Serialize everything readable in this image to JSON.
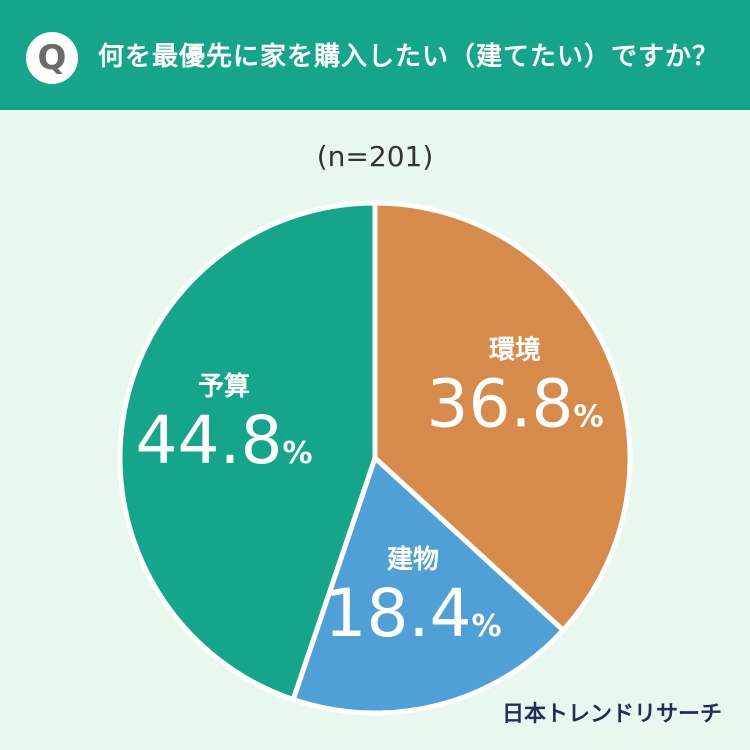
{
  "header": {
    "badge": "Q",
    "question": "何を最優先に家を購入したい（建てたい）ですか？"
  },
  "sample_label": "(n=201)",
  "brand": "日本トレンドリサーチ",
  "colors": {
    "header_bg": "#14a58a",
    "background": "#e9f8ef",
    "slice_budget": "#14a58a",
    "slice_environment": "#d68b4b",
    "slice_building": "#4ea0d6"
  },
  "chart_data": {
    "type": "pie",
    "title": "",
    "slices": [
      {
        "label": "環境",
        "value": 36.8,
        "value_label": "36.8",
        "unit": "%",
        "color": "#d68b4b"
      },
      {
        "label": "建物",
        "value": 18.4,
        "value_label": "18.4",
        "unit": "%",
        "color": "#4ea0d6"
      },
      {
        "label": "予算",
        "value": 44.8,
        "value_label": "44.8",
        "unit": "%",
        "color": "#14a58a"
      }
    ]
  }
}
